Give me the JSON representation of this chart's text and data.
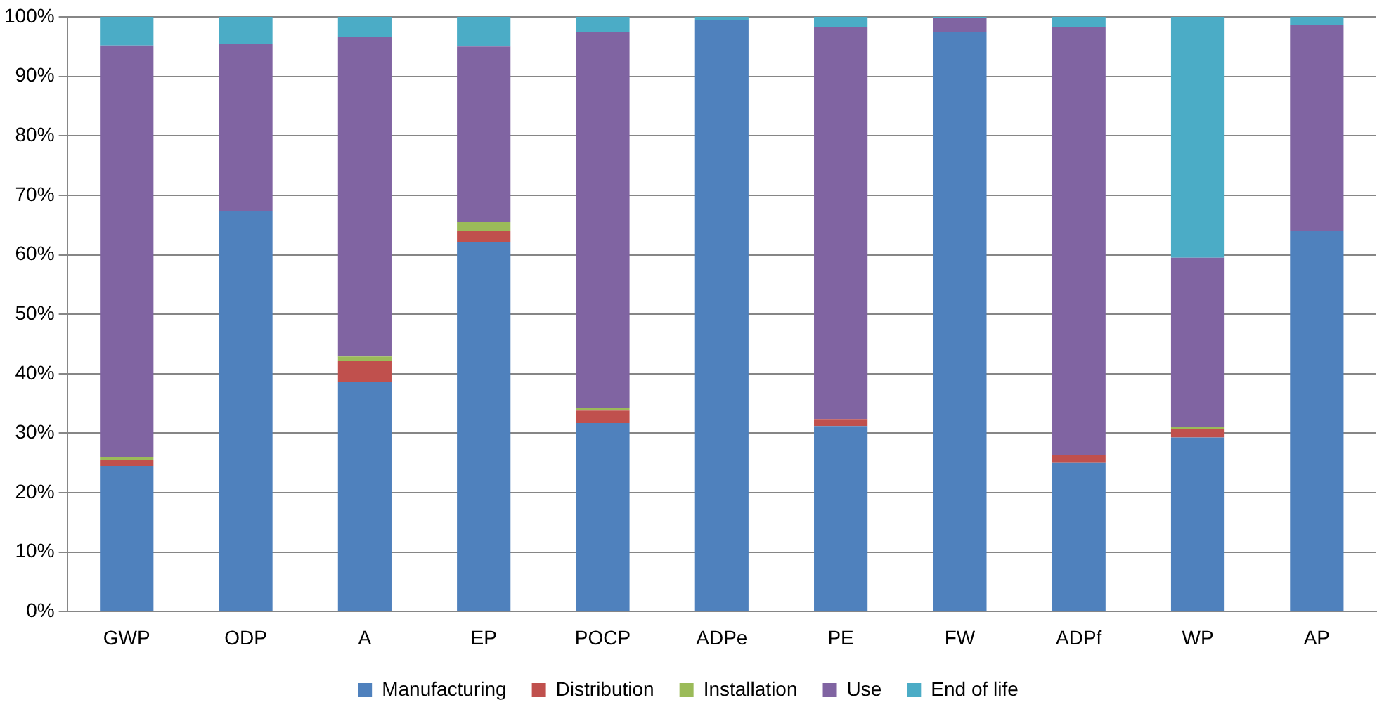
{
  "chart_data": {
    "type": "bar",
    "stacked": true,
    "categories": [
      "GWP",
      "ODP",
      "A",
      "EP",
      "POCP",
      "ADPe",
      "PE",
      "FW",
      "ADPf",
      "WP",
      "AP"
    ],
    "series": [
      {
        "name": "Manufacturing",
        "color": "#4f81bd",
        "values": [
          24.5,
          67.4,
          38.6,
          62.1,
          31.7,
          99.5,
          31.2,
          97.4,
          25.0,
          29.3,
          64.0
        ]
      },
      {
        "name": "Distribution",
        "color": "#c0504d",
        "values": [
          1.0,
          0,
          3.5,
          1.9,
          2.1,
          0,
          1.2,
          0,
          1.4,
          1.4,
          0
        ]
      },
      {
        "name": "Installation",
        "color": "#9bbb59",
        "values": [
          0.5,
          0,
          0.8,
          1.5,
          0.5,
          0,
          0,
          0,
          0,
          0.3,
          0
        ]
      },
      {
        "name": "Use",
        "color": "#8064a2",
        "values": [
          69.2,
          28.1,
          53.8,
          29.5,
          63.1,
          0,
          65.9,
          2.4,
          71.9,
          28.5,
          34.6
        ]
      },
      {
        "name": "End of life",
        "color": "#4bacc6",
        "values": [
          4.8,
          4.5,
          3.3,
          5.0,
          2.6,
          0.5,
          1.7,
          0.2,
          1.7,
          40.5,
          1.4
        ]
      }
    ],
    "ylim": [
      0,
      100
    ],
    "yticks": [
      {
        "value": 0,
        "label": "0%"
      },
      {
        "value": 10,
        "label": "10%"
      },
      {
        "value": 20,
        "label": "20%"
      },
      {
        "value": 30,
        "label": "30%"
      },
      {
        "value": 40,
        "label": "40%"
      },
      {
        "value": 50,
        "label": "50%"
      },
      {
        "value": 60,
        "label": "60%"
      },
      {
        "value": 70,
        "label": "70%"
      },
      {
        "value": 80,
        "label": "80%"
      },
      {
        "value": 90,
        "label": "90%"
      },
      {
        "value": 100,
        "label": "100%"
      }
    ],
    "grid": "y",
    "legend": "bottom"
  }
}
